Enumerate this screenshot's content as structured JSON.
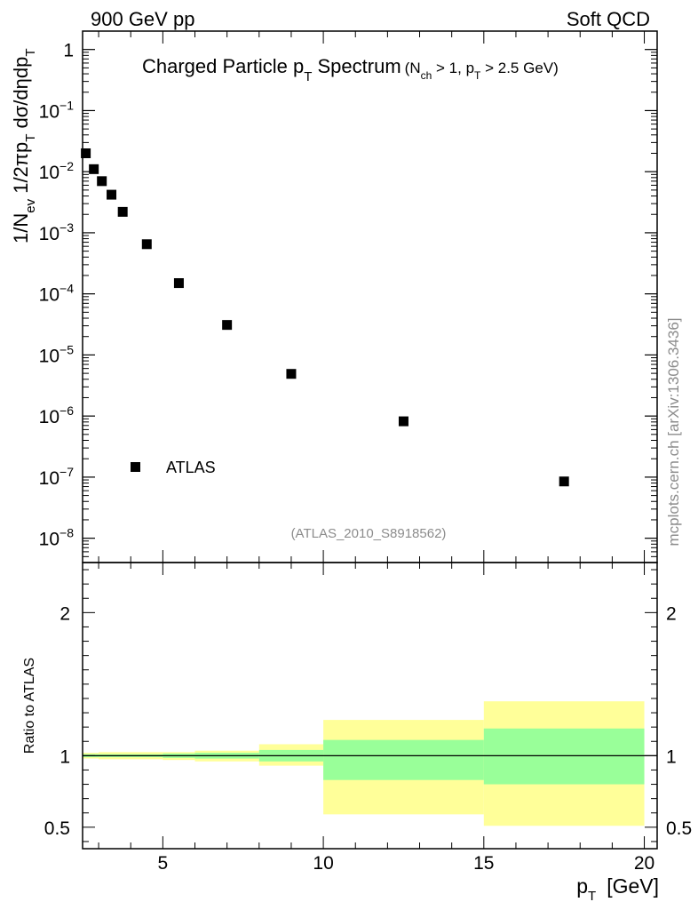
{
  "header": {
    "left": "900 GeV pp",
    "right": "Soft QCD"
  },
  "watermark": "mcplots.cern.ch [arXiv:1306.3436]",
  "chart_data": [
    {
      "type": "scatter",
      "title_main": "Charged Particle p",
      "title_main_sub": "T",
      "title_main_tail": " Spectrum",
      "title_cut_open": "(N",
      "title_cut_sub1": "ch",
      "title_cut_mid": " > 1, p",
      "title_cut_sub2": "T",
      "title_cut_tail": " > 2.5 GeV)",
      "ylabel": {
        "p1": "1/N",
        "s1": "ev",
        "p2": " 1/2πp",
        "s2": "T",
        "p3": " dσ/dηdp",
        "s3": "T"
      },
      "yscale": "log",
      "ylim": [
        4e-09,
        2
      ],
      "ytick_labels": [
        {
          "base": "1",
          "exp": ""
        },
        {
          "base": "10",
          "exp": "−1"
        },
        {
          "base": "10",
          "exp": "−2"
        },
        {
          "base": "10",
          "exp": "−3"
        },
        {
          "base": "10",
          "exp": "−4"
        },
        {
          "base": "10",
          "exp": "−5"
        },
        {
          "base": "10",
          "exp": "−6"
        },
        {
          "base": "10",
          "exp": "−7"
        },
        {
          "base": "10",
          "exp": "−8"
        }
      ],
      "xlim": [
        2.5,
        20
      ],
      "series": [
        {
          "name": "ATLAS",
          "color": "#000000",
          "marker": "square",
          "x": [
            2.6,
            2.85,
            3.1,
            3.4,
            3.75,
            4.5,
            5.5,
            7.0,
            9.0,
            12.5,
            17.5
          ],
          "y": [
            0.02,
            0.011,
            0.007,
            0.0042,
            0.0022,
            0.00065,
            0.00015,
            3.1e-05,
            4.9e-06,
            8.2e-07,
            8.5e-08
          ]
        }
      ],
      "legend_placement": "bottom-left",
      "analysis_label": "(ATLAS_2010_S8918562)"
    },
    {
      "type": "area",
      "ylabel": "Ratio to ATLAS",
      "ylim": [
        0.35,
        2.35
      ],
      "yticks_labeled": [
        "0.5",
        "1",
        "2"
      ],
      "xlabel": "p",
      "xlabel_sub": "T",
      "xlabel_unit": "[GeV]",
      "xlim": [
        2.5,
        20.4
      ],
      "xticks": [
        "5",
        "10",
        "15",
        "20"
      ],
      "reference_line": 1,
      "bins": [
        {
          "x": [
            2.5,
            3.0
          ],
          "inner": [
            0.99,
            1.01
          ],
          "outer": [
            0.98,
            1.02
          ]
        },
        {
          "x": [
            3.0,
            5.0
          ],
          "inner": [
            0.99,
            1.01
          ],
          "outer": [
            0.975,
            1.025
          ]
        },
        {
          "x": [
            5.0,
            6.0
          ],
          "inner": [
            0.985,
            1.015
          ],
          "outer": [
            0.97,
            1.025
          ]
        },
        {
          "x": [
            6.0,
            8.0
          ],
          "inner": [
            0.98,
            1.02
          ],
          "outer": [
            0.96,
            1.035
          ]
        },
        {
          "x": [
            8.0,
            10.0
          ],
          "inner": [
            0.96,
            1.04
          ],
          "outer": [
            0.93,
            1.08
          ]
        },
        {
          "x": [
            10.0,
            15.0
          ],
          "inner": [
            0.83,
            1.11
          ],
          "outer": [
            0.59,
            1.25
          ]
        },
        {
          "x": [
            15.0,
            20.0
          ],
          "inner": [
            0.8,
            1.19
          ],
          "outer": [
            0.51,
            1.38
          ]
        }
      ],
      "band_colors": {
        "inner": "#99ff99",
        "outer": "#ffff99"
      }
    }
  ]
}
